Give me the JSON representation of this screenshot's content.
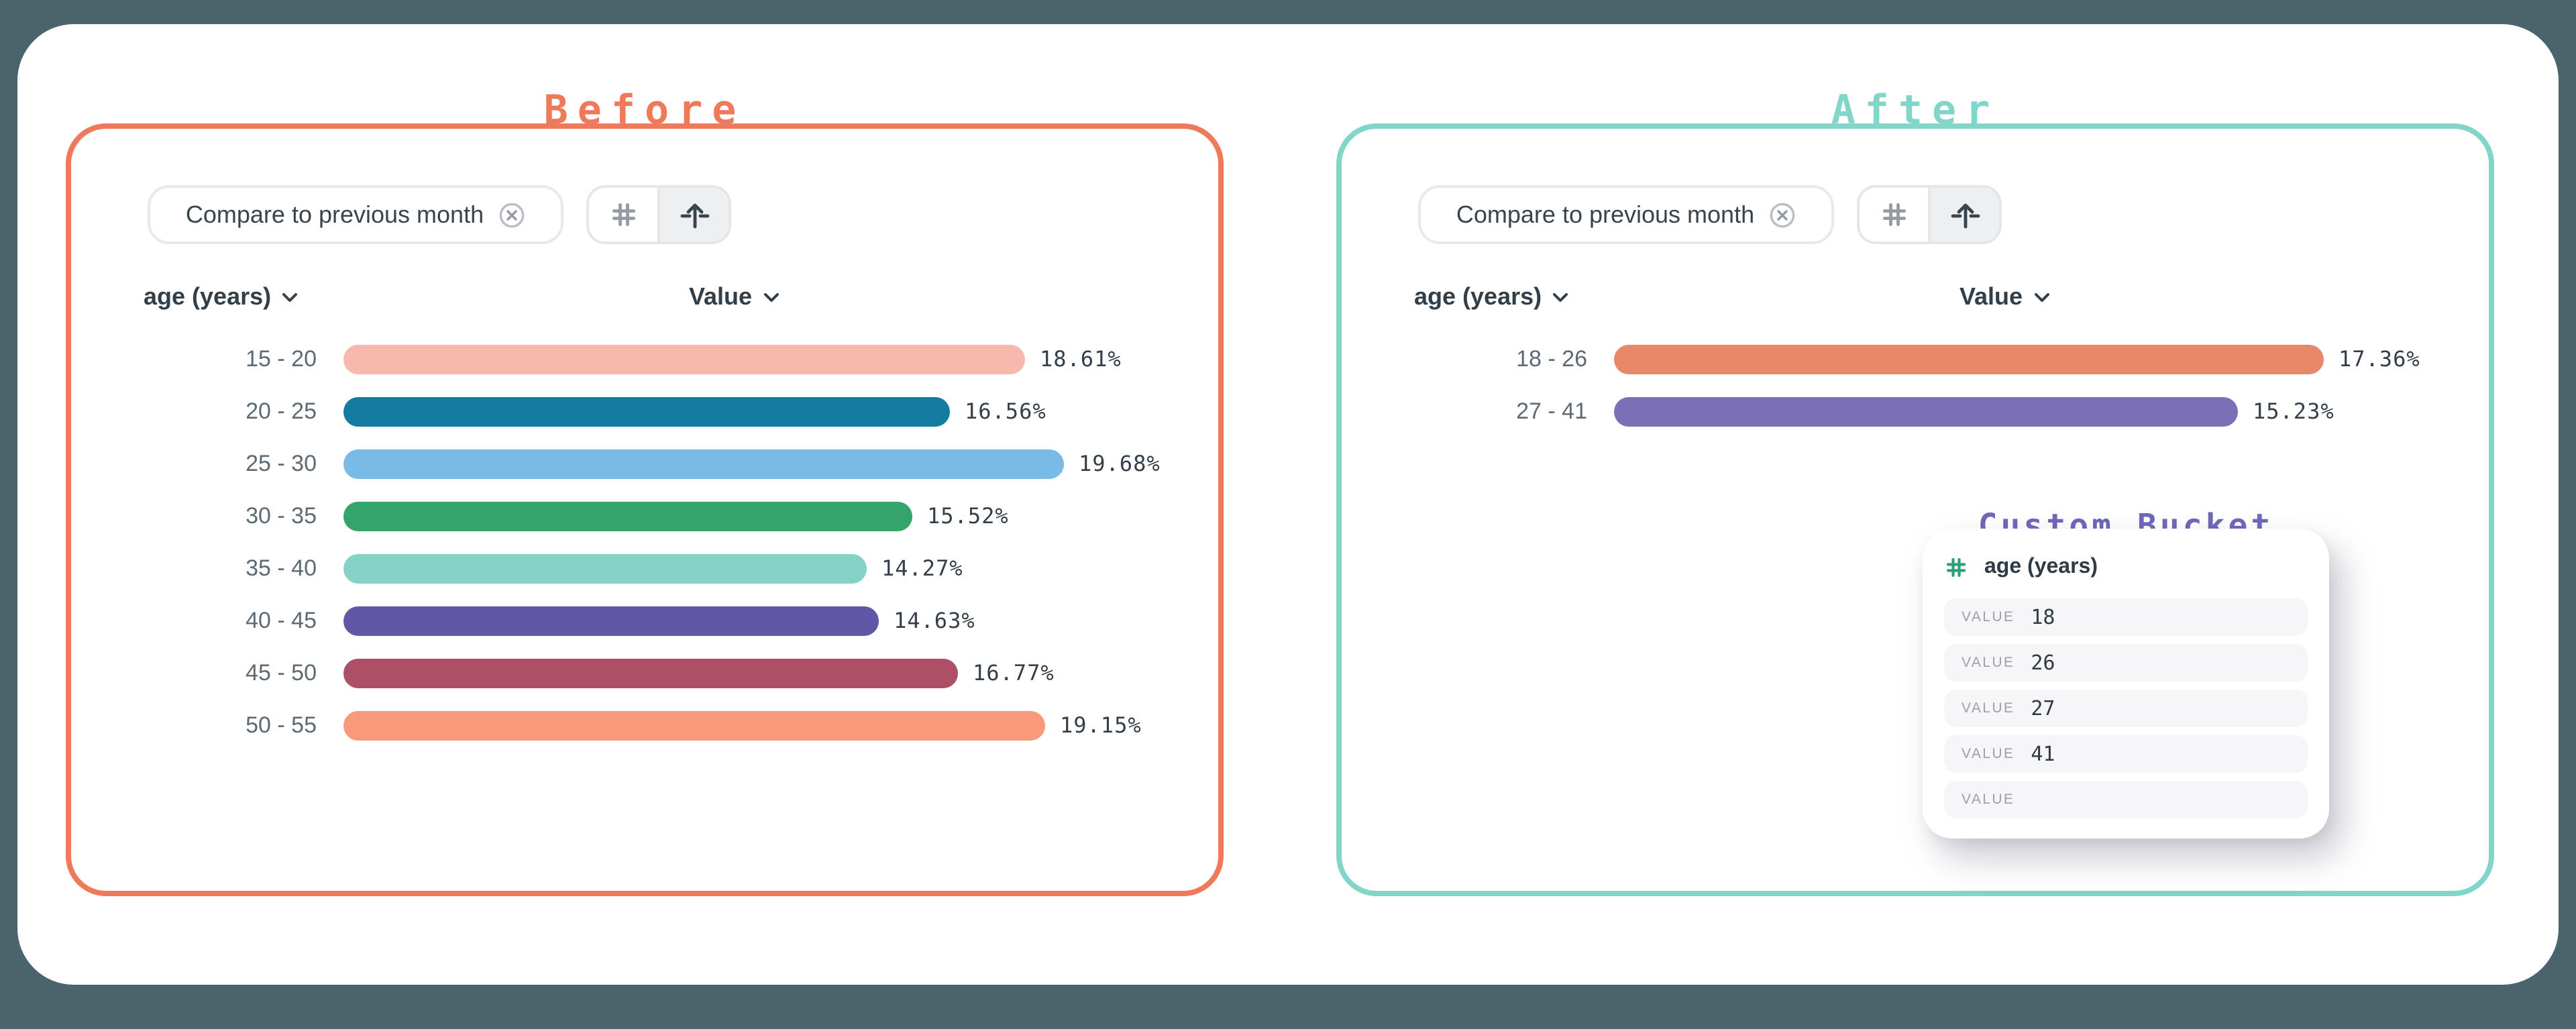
{
  "colors": {
    "page_background": "#4b646c",
    "card_background": "#ffffff",
    "before_accent": "#ee7a5b",
    "after_accent": "#82d5c9",
    "custom_bucket_accent": "#6f68ba",
    "hash_green": "#2ea077"
  },
  "before": {
    "title": "Before",
    "filter_chip": {
      "label": "Compare to previous month"
    },
    "columns": {
      "dimension": "age (years)",
      "measure": "Value"
    }
  },
  "after": {
    "title": "After",
    "filter_chip": {
      "label": "Compare to previous month"
    },
    "columns": {
      "dimension": "age (years)",
      "measure": "Value"
    },
    "custom_bucket": {
      "title": "Custom Bucket",
      "field_label": "age (years)",
      "rows": [
        {
          "label": "VALUE",
          "value": "18"
        },
        {
          "label": "VALUE",
          "value": "26"
        },
        {
          "label": "VALUE",
          "value": "27"
        },
        {
          "label": "VALUE",
          "value": "41"
        },
        {
          "label": "VALUE",
          "value": ""
        }
      ]
    }
  },
  "chart_data": [
    {
      "type": "bar",
      "panel": "Before",
      "orientation": "horizontal",
      "unit": "%",
      "categories": [
        "15 - 20",
        "20 - 25",
        "25 - 30",
        "30 - 35",
        "35 - 40",
        "40 - 45",
        "45 - 50",
        "50 - 55"
      ],
      "values": [
        18.61,
        16.56,
        19.68,
        15.52,
        14.27,
        14.63,
        16.77,
        19.15
      ],
      "value_labels": [
        "18.61%",
        "16.56%",
        "19.68%",
        "15.52%",
        "14.27%",
        "14.63%",
        "16.77%",
        "19.15%"
      ],
      "bar_colors": [
        "#f7b9ae",
        "#147ca1",
        "#79bae6",
        "#35a46a",
        "#85d3c6",
        "#6057a7",
        "#ae4f68",
        "#f7997a"
      ]
    },
    {
      "type": "bar",
      "panel": "After",
      "orientation": "horizontal",
      "unit": "%",
      "categories": [
        "18 - 26",
        "27 - 41"
      ],
      "values": [
        17.36,
        15.23
      ],
      "value_labels": [
        "17.36%",
        "15.23%"
      ],
      "bar_colors": [
        "#e78868",
        "#7b70b6"
      ]
    }
  ]
}
